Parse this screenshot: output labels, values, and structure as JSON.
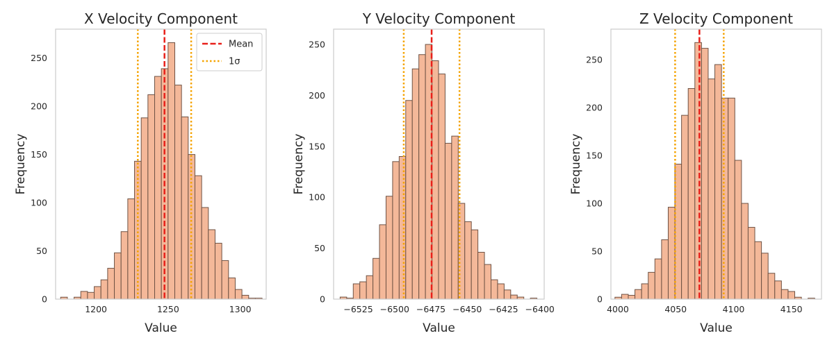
{
  "chart_data": [
    {
      "type": "bar",
      "title": "X Velocity Component",
      "xlabel": "Value",
      "ylabel": "Frequency",
      "xlim": [
        1172,
        1318
      ],
      "ylim": [
        0,
        280
      ],
      "xticks": [
        1200,
        1250,
        1300
      ],
      "yticks": [
        0,
        50,
        100,
        150,
        200,
        250
      ],
      "bins": {
        "start": 1175.5,
        "width": 4.655,
        "counts": [
          2,
          0,
          2,
          8,
          7,
          13,
          20,
          32,
          48,
          70,
          104,
          143,
          188,
          212,
          231,
          239,
          266,
          222,
          189,
          150,
          128,
          95,
          72,
          58,
          40,
          22,
          10,
          4,
          1,
          1
        ]
      },
      "mean": 1247.5,
      "sigma": 18.5,
      "legend": {
        "position": "top-right",
        "entries": [
          "Mean",
          "1σ"
        ]
      }
    },
    {
      "type": "bar",
      "title": "Y Velocity Component",
      "xlabel": "Value",
      "ylabel": "Frequency",
      "xlim": [
        -6542,
        -6397
      ],
      "ylim": [
        0,
        265
      ],
      "xticks": [
        -6525,
        -6500,
        -6475,
        -6450,
        -6425,
        -6400
      ],
      "yticks": [
        0,
        50,
        100,
        150,
        200,
        250
      ],
      "bins": {
        "start": -6537.5,
        "width": 4.517,
        "counts": [
          2,
          1,
          15,
          17,
          23,
          40,
          73,
          101,
          135,
          140,
          195,
          226,
          240,
          250,
          234,
          221,
          153,
          160,
          94,
          76,
          68,
          46,
          34,
          19,
          15,
          9,
          4,
          2,
          0,
          1
        ]
      },
      "mean": -6474.5,
      "sigma": 19.2,
      "legend": null
    },
    {
      "type": "bar",
      "title": "Z Velocity Component",
      "xlabel": "Value",
      "ylabel": "Frequency",
      "xlim": [
        3994,
        4176
      ],
      "ylim": [
        0,
        282
      ],
      "xticks": [
        4000,
        4050,
        4100,
        4150
      ],
      "yticks": [
        0,
        50,
        100,
        150,
        200,
        250
      ],
      "bins": {
        "start": 3997.5,
        "width": 5.755,
        "counts": [
          2,
          5,
          4,
          10,
          16,
          28,
          42,
          62,
          96,
          141,
          192,
          220,
          268,
          262,
          230,
          245,
          210,
          210,
          145,
          100,
          75,
          60,
          48,
          27,
          19,
          10,
          8,
          2,
          0,
          1
        ]
      },
      "mean": 4070.5,
      "sigma": 21.0,
      "legend": null
    }
  ],
  "styles": {
    "bar_fill": "#f4b899",
    "bar_edge": "#6e5244",
    "mean_color": "#e8201a",
    "sigma_color": "#f5a300",
    "axes_edge": "#cccccc"
  }
}
